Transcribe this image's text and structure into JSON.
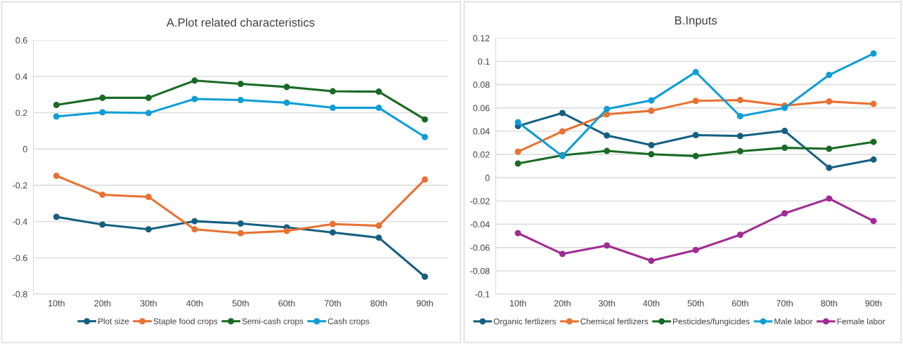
{
  "chart_data": [
    {
      "type": "line",
      "title": "A.Plot related characteristics",
      "categories": [
        "10th",
        "20th",
        "30th",
        "40th",
        "50th",
        "60th",
        "70th",
        "80th",
        "90th"
      ],
      "series": [
        {
          "name": "Plot size",
          "color": "#156082",
          "values": [
            -0.374,
            -0.417,
            -0.443,
            -0.398,
            -0.411,
            -0.432,
            -0.46,
            -0.489,
            -0.704
          ]
        },
        {
          "name": "Staple food crops",
          "color": "#e97132",
          "values": [
            -0.148,
            -0.252,
            -0.264,
            -0.443,
            -0.464,
            -0.452,
            -0.414,
            -0.423,
            -0.168
          ]
        },
        {
          "name": "Semi-cash crops",
          "color": "#196b24",
          "values": [
            0.243,
            0.282,
            0.282,
            0.377,
            0.359,
            0.342,
            0.318,
            0.316,
            0.163
          ]
        },
        {
          "name": "Cash crops",
          "color": "#0f9ed5",
          "values": [
            0.179,
            0.202,
            0.198,
            0.276,
            0.27,
            0.255,
            0.227,
            0.227,
            0.066
          ]
        }
      ],
      "ylim": [
        -0.8,
        0.6
      ],
      "yticks": [
        -0.8,
        -0.6,
        -0.4,
        -0.2,
        0,
        0.2,
        0.4,
        0.6
      ],
      "grid": "y",
      "legend": "bottom",
      "marker": "circle",
      "line_style": "solid"
    },
    {
      "type": "line",
      "title": "B.Inputs",
      "categories": [
        "10th",
        "20th",
        "30th",
        "40th",
        "50th",
        "60th",
        "70th",
        "80th",
        "90th"
      ],
      "series": [
        {
          "name": "Organic fertlizers",
          "color": "#156082",
          "values": [
            0.0444,
            0.0556,
            0.0363,
            0.028,
            0.0366,
            0.0359,
            0.0402,
            0.0085,
            0.0156
          ]
        },
        {
          "name": "Chemical fertlizers",
          "color": "#e97132",
          "values": [
            0.0223,
            0.0398,
            0.0545,
            0.0575,
            0.066,
            0.0667,
            0.062,
            0.0655,
            0.0634
          ]
        },
        {
          "name": "Pesticides/fungicides",
          "color": "#196b24",
          "values": [
            0.0122,
            0.0193,
            0.023,
            0.0202,
            0.0186,
            0.0228,
            0.0257,
            0.0248,
            0.0308
          ]
        },
        {
          "name": "Male labor",
          "color": "#0f9ed5",
          "values": [
            0.0476,
            0.0186,
            0.0591,
            0.0664,
            0.0908,
            0.0529,
            0.06,
            0.0883,
            0.1067
          ]
        },
        {
          "name": "Female labor",
          "color": "#a02b93",
          "values": [
            -0.0476,
            -0.0655,
            -0.0582,
            -0.0713,
            -0.0621,
            -0.049,
            -0.0306,
            -0.0179,
            -0.0372
          ]
        }
      ],
      "ylim": [
        -0.1,
        0.12
      ],
      "yticks": [
        -0.1,
        -0.08,
        -0.06,
        -0.04,
        -0.02,
        0,
        0.02,
        0.04,
        0.06,
        0.08,
        0.1,
        0.12
      ],
      "grid": "y",
      "legend": "bottom",
      "marker": "circle",
      "line_style": "solid"
    }
  ]
}
